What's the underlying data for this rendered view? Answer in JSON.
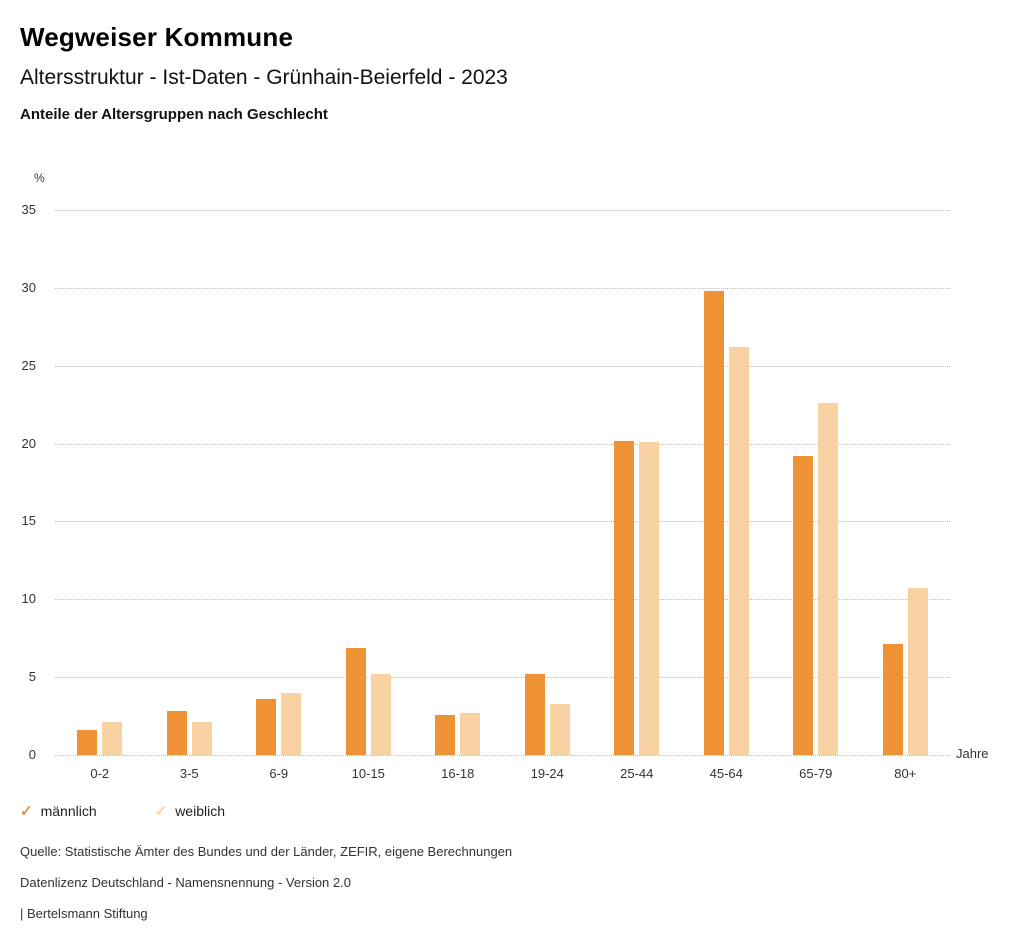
{
  "header": {
    "title": "Wegweiser Kommune",
    "subtitle": "Altersstruktur - Ist-Daten - Grünhain-Beierfeld - 2023",
    "subheading": "Anteile der Altersgruppen nach Geschlecht"
  },
  "chart_data": {
    "type": "bar",
    "title": "Anteile der Altersgruppen nach Geschlecht",
    "categories": [
      "0-2",
      "3-5",
      "6-9",
      "10-15",
      "16-18",
      "19-24",
      "25-44",
      "45-64",
      "65-79",
      "80+"
    ],
    "series": [
      {
        "name": "männlich",
        "color": "#ef9236",
        "values": [
          1.6,
          2.8,
          3.6,
          6.9,
          2.6,
          5.2,
          20.2,
          29.8,
          19.2,
          7.1
        ]
      },
      {
        "name": "weiblich",
        "color": "#f8d2a2",
        "values": [
          2.1,
          2.1,
          4.0,
          5.2,
          2.7,
          3.3,
          20.1,
          26.2,
          22.6,
          10.7
        ]
      }
    ],
    "xlabel": "Jahre",
    "ylabel": "%",
    "ylim": [
      0,
      35
    ],
    "yticks": [
      0,
      5,
      10,
      15,
      20,
      25,
      30,
      35
    ],
    "grid": true,
    "grid_style": "dotted",
    "legend_position": "bottom-left"
  },
  "footer": {
    "line1": "Quelle: Statistische Ämter des Bundes und der Länder, ZEFIR, eigene Berechnungen",
    "line2": "Datenlizenz Deutschland - Namensnennung - Version 2.0",
    "line3": "| Bertelsmann Stiftung"
  }
}
